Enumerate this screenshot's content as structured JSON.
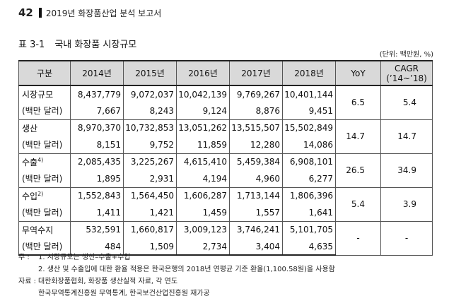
{
  "header": {
    "page_number": "42",
    "title": "2019년 화장품산업 분석 보고서"
  },
  "table": {
    "number": "표 3-1",
    "title": "국내 화장품 시장규모",
    "unit": "(단위: 백만원, %)",
    "columns": {
      "category": "구분",
      "years": [
        "2014년",
        "2015년",
        "2016년",
        "2017년",
        "2018년"
      ],
      "yoy": "YoY",
      "cagr_line1": "CAGR",
      "cagr_line2": "(’14~’18)"
    },
    "rows": [
      {
        "label": "시장규모",
        "label_sup": "",
        "sublabel": "(백만 달러)",
        "krw": [
          "8,437,779",
          "9,072,037",
          "10,042,139",
          "9,769,267",
          "10,401,144"
        ],
        "usd": [
          "7,667",
          "8,243",
          "9,124",
          "8,876",
          "9,451"
        ],
        "yoy": "6.5",
        "cagr": "5.4"
      },
      {
        "label": "생산",
        "label_sup": "",
        "sublabel": "(백만 달러)",
        "krw": [
          "8,970,370",
          "10,732,853",
          "13,051,262",
          "13,515,507",
          "15,502,849"
        ],
        "usd": [
          "8,151",
          "9,752",
          "11,859",
          "12,280",
          "14,086"
        ],
        "yoy": "14.7",
        "cagr": "14.7"
      },
      {
        "label": "수출",
        "label_sup": "4)",
        "sublabel": "(백만 달러)",
        "krw": [
          "2,085,435",
          "3,225,267",
          "4,615,410",
          "5,459,384",
          "6,908,101"
        ],
        "usd": [
          "1,895",
          "2,931",
          "4,194",
          "4,960",
          "6,277"
        ],
        "yoy": "26.5",
        "cagr": "34.9"
      },
      {
        "label": "수입",
        "label_sup": "2)",
        "sublabel": "(백만 달러)",
        "krw": [
          "1,552,843",
          "1,564,450",
          "1,606,287",
          "1,713,144",
          "1,806,396"
        ],
        "usd": [
          "1,411",
          "1,421",
          "1,459",
          "1,557",
          "1,641"
        ],
        "yoy": "5.4",
        "cagr": "3.9"
      },
      {
        "label": "무역수지",
        "label_sup": "",
        "sublabel": "(백만 달러)",
        "krw": [
          "532,591",
          "1,660,817",
          "3,009,123",
          "3,746,241",
          "5,101,705"
        ],
        "usd": [
          "484",
          "1,509",
          "2,734",
          "3,404",
          "4,635"
        ],
        "yoy": "-",
        "cagr": "-"
      }
    ]
  },
  "notes": {
    "note_label": "주 :",
    "note_1": "1. 시장규모는 생산–수출+수입",
    "note_2": "2. 생산 및 수출입에 대한 환율 적용은 한국은행의 2018년 연평균 기준 환율(1,100.58원)을 사용함",
    "source_label": "자료 :",
    "source_1": "대한화장품협회, 화장품 생산실적 자료, 각 연도",
    "source_2": "한국무역통계진흥원 무역통계, 한국보건산업진흥원 재가공"
  }
}
